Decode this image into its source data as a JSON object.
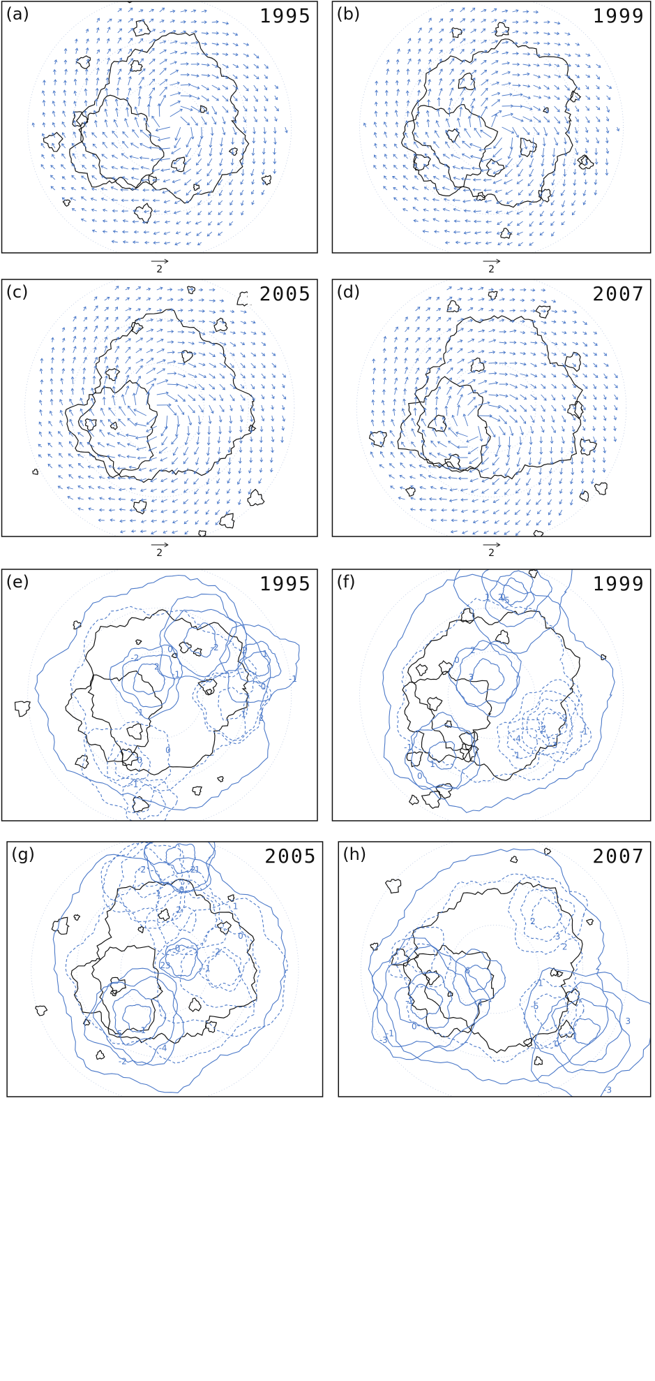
{
  "panels": [
    {
      "label": "(a)",
      "year": "1995",
      "scale": "2"
    },
    {
      "label": "(b)",
      "year": "1999",
      "scale": "2"
    },
    {
      "label": "(c)",
      "year": "2005",
      "scale": "2"
    },
    {
      "label": "(d)",
      "year": "2007",
      "scale": "2"
    },
    {
      "label": "(e)",
      "year": "1995",
      "contour_labels": [
        "2",
        "-2",
        "-1",
        "0",
        "-1",
        "0",
        "-2",
        "0",
        "-1",
        "1",
        "2",
        "0",
        "1",
        "-2",
        "-1"
      ]
    },
    {
      "label": "(f)",
      "year": "1999",
      "contour_labels": [
        "3",
        "2",
        "0",
        "-2",
        "-1",
        "1",
        "0",
        "-1",
        "-2",
        "-3",
        "-4",
        "-5",
        "2",
        "1",
        "0",
        "-1"
      ]
    },
    {
      "label": "(g)",
      "year": "2005",
      "contour_labels": [
        "3",
        "2",
        "-1",
        "-2",
        "0",
        "1",
        "-1",
        "-5",
        "-4",
        "-2",
        "2",
        "0",
        "1",
        "-1",
        "2",
        "0",
        "-2"
      ]
    },
    {
      "label": "(h)",
      "year": "2007",
      "contour_labels": [
        "6",
        "-4",
        "-5",
        "-1",
        "1",
        "0",
        "3",
        "-3",
        "2",
        "3",
        "2",
        "-2",
        "0",
        "-1",
        "-3"
      ]
    }
  ]
}
